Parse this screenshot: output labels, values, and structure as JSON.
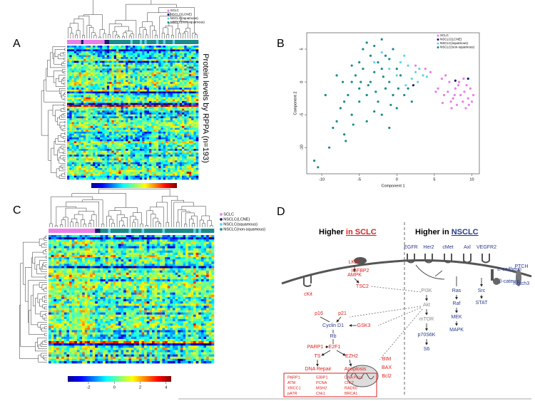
{
  "panel_labels": [
    "A",
    "B",
    "C",
    "D"
  ],
  "panel_a": {
    "side_label": "Protein levels by RPPA (n=193)",
    "legend": [
      "SCLC",
      "NSCLC(LCNE)",
      "NSCLC(squamous)",
      "NSCLC(non-squamous)"
    ]
  },
  "chart_data": {
    "type": "scatter",
    "x_label": "Component 1",
    "y_label": "Component 2",
    "legend": "upper right",
    "xlim": [
      -12,
      11
    ],
    "xticks": [
      -10,
      -5,
      0,
      5,
      10
    ],
    "ylim": [
      -14,
      7.5
    ],
    "yticks": [
      -10,
      -5,
      0,
      5
    ],
    "series": [
      {
        "name": "SCLC",
        "color": "#e87ee8",
        "x": [
          5.5,
          6,
          6.3,
          6.8,
          7,
          7.2,
          7.5,
          7.8,
          8,
          8.2,
          8.5,
          8.8,
          9,
          9.2,
          9.5,
          9.8,
          10,
          10.2,
          6.5,
          7.3,
          8.3,
          9.3,
          4.5,
          5.2,
          6.1,
          7.7,
          8.9,
          9.6,
          3.8,
          2.5
        ],
        "y": [
          -1,
          0.5,
          -2,
          -1.5,
          0,
          -3,
          -2.5,
          -1,
          -3.5,
          -0.5,
          -2,
          -3,
          -1.5,
          -4,
          -2.5,
          -1,
          -3,
          -2,
          1,
          -4,
          0,
          -0.5,
          1.5,
          -1.5,
          -3.2,
          -2,
          0.5,
          -3.5,
          2,
          2.5
        ]
      },
      {
        "name": "NSCLC(LCNE)",
        "color": "#1b1b6e",
        "x": [
          7.8,
          9.5,
          2.2
        ],
        "y": [
          0.2,
          0.5,
          -0.5
        ]
      },
      {
        "name": "NSCLC(squamous)",
        "color": "#5fd3e8",
        "x": [
          -3,
          -2,
          -1,
          0,
          0.5,
          1,
          1.5,
          2,
          2.5,
          3,
          3.5,
          -1.5,
          -0.5,
          1.2,
          2.8,
          4
        ],
        "y": [
          3,
          4.5,
          2,
          1,
          3,
          4,
          2.5,
          0.5,
          1.5,
          2,
          1,
          -1,
          -2,
          -0.5,
          0,
          0.8
        ]
      },
      {
        "name": "NSCLC(non-squamous)",
        "color": "#1a8a8a",
        "x": [
          -11,
          -10.5,
          -9,
          -8.5,
          -8,
          -7.5,
          -7,
          -7,
          -6.5,
          -6,
          -6,
          -5.5,
          -5,
          -5,
          -4.5,
          -4.5,
          -4,
          -4,
          -3.5,
          -3.5,
          -3,
          -3,
          -2.5,
          -2.5,
          -2,
          -2,
          -1.5,
          -1.5,
          -1,
          -1,
          -0.5,
          -0.5,
          0,
          0,
          0.5,
          1,
          1.5,
          2,
          -6,
          -5,
          -4,
          -3,
          -2,
          -1,
          -8,
          -9.5,
          -4.8,
          -3.8,
          -2.8,
          -1.8,
          -0.8,
          0.2,
          -6.8,
          -5.8,
          -7.2
        ],
        "y": [
          -12,
          -13,
          -10,
          -7,
          -6,
          -4,
          -3,
          -8,
          -2,
          0,
          -5,
          1,
          3,
          -1,
          5,
          2,
          6,
          -2,
          4,
          0,
          5.5,
          1.5,
          3,
          -3,
          6.5,
          2,
          4,
          -1,
          3.5,
          0,
          5,
          -2,
          2,
          -4,
          1,
          -2,
          -1,
          -3,
          2.5,
          -3,
          -6,
          -4.5,
          -5,
          -7,
          1,
          -2,
          0,
          -0.5,
          -1.5,
          0.8,
          -3.5,
          -1,
          -9,
          -6.5,
          0
        ]
      }
    ]
  },
  "panel_c": {
    "legend": [
      "SCLC",
      "NSCLC(LCNE)",
      "NSCLC(squamous)",
      "NSCLC(non-squamous)"
    ],
    "colorbar_lim": [
      -3.6,
      4.4
    ],
    "colorbar_ticks": [
      -2,
      0,
      2,
      4
    ]
  },
  "panel_d": {
    "left_heading": {
      "prefix": "Higher",
      "emph": "in SCLC"
    },
    "right_heading": {
      "prefix": "Higher in",
      "emph": "NSCLC"
    },
    "nodes": [
      "cKit",
      "IGFBP2",
      "LKB1",
      "AMPK",
      "TSC2",
      "p16",
      "p21",
      "Cyclin D1",
      "GSK3",
      "Rb",
      "PARP1",
      "E2F1",
      "TS",
      "EZH2",
      "DNA Repair",
      "Apoptosis",
      "BIM",
      "BAX",
      "Bcl2",
      "EGFR",
      "Her2",
      "cMet",
      "Axl",
      "VEGFR2",
      "E-cadherin",
      "β-catenin",
      "PTCH",
      "Notch3",
      "PI3K",
      "Akt",
      "mTOR",
      "p70S6K",
      "S6",
      "Ras",
      "Raf",
      "MEK",
      "MAPK",
      "Src",
      "STAT"
    ],
    "box": [
      [
        "PARP1",
        "53BP1",
        "DNA PKcs"
      ],
      [
        "ATM",
        "PCNA",
        "Chk2"
      ],
      [
        "XRCC1",
        "MSH2",
        "RAD50"
      ],
      [
        "pATR",
        "Chk1",
        "BRCA1"
      ]
    ]
  }
}
